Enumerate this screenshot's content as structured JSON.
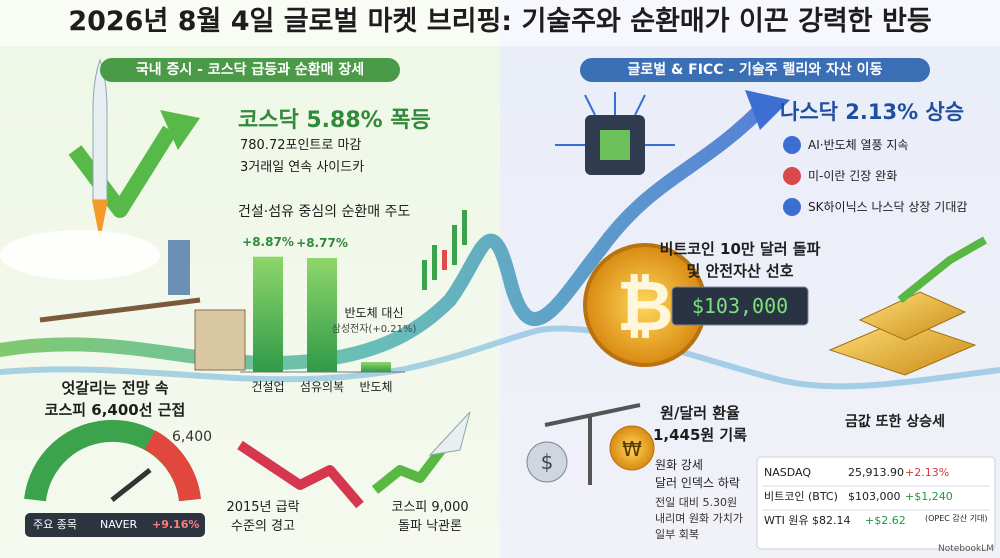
{
  "header": {
    "title": "2026년 8월 4일 글로벌 마켓 브리핑: 기술주와 순환매가 이끈 강력한 반등"
  },
  "left": {
    "heading": "국내 증시 - 코스닥 급등과 순환매 장세",
    "kosdaq": {
      "headline": "코스닥 5.88% 폭등",
      "lines": [
        "780.72포인트로 마감",
        "3거래일 연속 사이드카"
      ]
    },
    "rotation": {
      "title": "건설·섬유 중심의 순환매 주도",
      "bars": [
        {
          "label": "건설업",
          "value": 8.87,
          "value_label": "+8.87%"
        },
        {
          "label": "섬유의복",
          "value": 8.77,
          "value_label": "+8.77%"
        },
        {
          "label": "반도체",
          "note": [
            "반도체 대신",
            "삼성전자(+0.21%)"
          ]
        }
      ]
    },
    "kospi": {
      "lines": [
        "엇갈리는 전망 속",
        "코스피 6,400선 근접"
      ],
      "gauge_label": "6,400",
      "badge": [
        "주요 종목",
        "NAVER",
        "+9.16%"
      ]
    },
    "warning": [
      "2015년 급락",
      "수준의 경고"
    ],
    "optimism": [
      "코스피 9,000",
      "돌파 낙관론"
    ]
  },
  "right": {
    "heading": "글로벌 & FICC - 기술주 랠리와 자산 이동",
    "nasdaq": {
      "headline": "나스닥 2.13% 상승",
      "bullets": [
        "AI·반도체 열풍 지속",
        "미-이란 긴장 완화",
        "SK하이닉스 나스닥 상장 기대감"
      ]
    },
    "bitcoin": {
      "lines": [
        "비트코인 10만 달러 돌파",
        "및 안전자산 선호"
      ],
      "price": "$103,000"
    },
    "gold": "금값 또한 상승세",
    "fx": {
      "lines": [
        "원/달러 환율",
        "1,445원 기록"
      ],
      "notes": [
        "원화 강세",
        "달러 인덱스 하락"
      ],
      "detail": [
        "전일 대비 5.30원",
        "내리며 원화 가치가",
        "일부 회복"
      ]
    },
    "table": {
      "rows": [
        [
          "NASDAQ",
          "25,913.90",
          "+2.13%"
        ],
        [
          "비트코인 (BTC)",
          "$103,000",
          "+$1,240"
        ],
        [
          "WTI 원유",
          "$82.14",
          "+$2.62",
          "(OPEC 감산 기대)"
        ]
      ]
    }
  },
  "footer": {
    "brand": "NotebookLM"
  }
}
